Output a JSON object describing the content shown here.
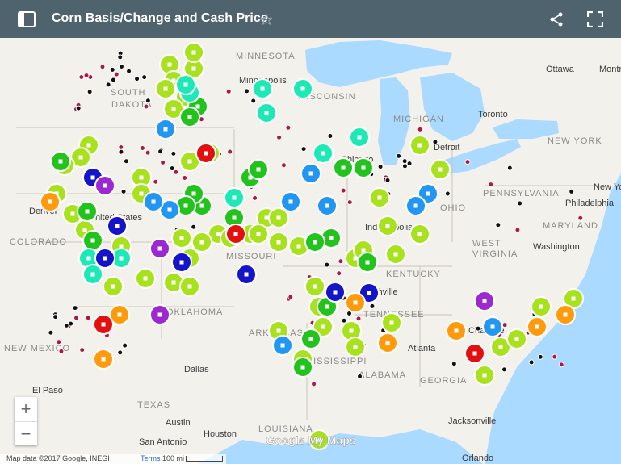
{
  "header": {
    "title": "Corn Basis/Change and Cash Price"
  },
  "states": [
    "MINNESOTA",
    "SOUTH",
    "DAKOTA",
    "WISCONSIN",
    "MICHIGAN",
    "COLORADO",
    "MISSOURI",
    "KENTUCKY",
    "OHIO",
    "PENNSYLVANIA",
    "NEW YORK",
    "WEST",
    "VIRGINIA",
    "MARYLAND",
    "TENNESSEE",
    "OKLAHOMA",
    "ARKANSAS",
    "MISSISSIPPI",
    "ALABAMA",
    "GEORGIA",
    "TEXAS",
    "LOUISIANA",
    "NEW MEXICO"
  ],
  "cities": [
    "Ottawa",
    "Montreal",
    "Toronto",
    "Detroit",
    "Chicago",
    "Indianapolis",
    "Minneapolis",
    "Denver",
    "Philadelphia",
    "Washington",
    "New York",
    "Atlanta",
    "Dallas",
    "Austin",
    "San Antonio",
    "Houston",
    "Jacksonville",
    "Orlando",
    "El Paso",
    "Nashville",
    "Charlotte",
    "United States"
  ],
  "zoom": {
    "in": "+",
    "out": "−"
  },
  "footer": {
    "attribution": "Map data ©2017 Google, INEGI",
    "terms": "Terms",
    "scale": "100 mi",
    "logo": "Google My Maps"
  }
}
